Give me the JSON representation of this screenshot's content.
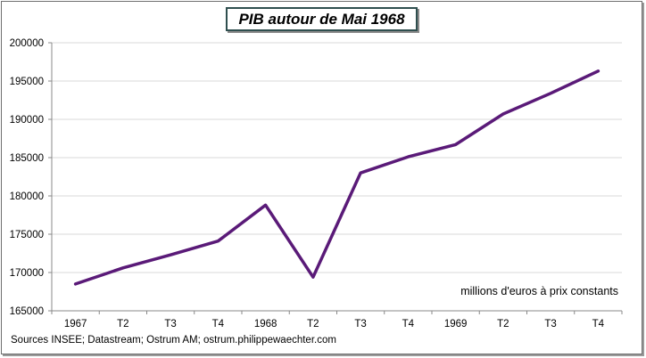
{
  "title": "PIB autour de Mai 1968",
  "source": "Sources INSEE; Datastream; Ostrum AM; ostrum.philippewaechter.com",
  "colors": {
    "line": "#5a1a78",
    "grid": "#d9d9d9",
    "axis": "#888888"
  },
  "chart_data": {
    "type": "line",
    "title": "PIB autour de Mai 1968",
    "xlabel": "",
    "ylabel": "",
    "annotation": "millions d'euros à prix constants",
    "categories": [
      "1967",
      "T2",
      "T3",
      "T4",
      "1968",
      "T2",
      "T3",
      "T4",
      "1969",
      "T2",
      "T3",
      "T4"
    ],
    "series": [
      {
        "values": [
          168500,
          170600,
          172300,
          174100,
          178800,
          169400,
          183000,
          185100,
          186700,
          190700,
          193400,
          196300
        ]
      }
    ],
    "ylim": [
      165000,
      200000
    ],
    "yticks": [
      165000,
      170000,
      175000,
      180000,
      185000,
      190000,
      195000,
      200000
    ],
    "grid": true,
    "legend": "none"
  }
}
